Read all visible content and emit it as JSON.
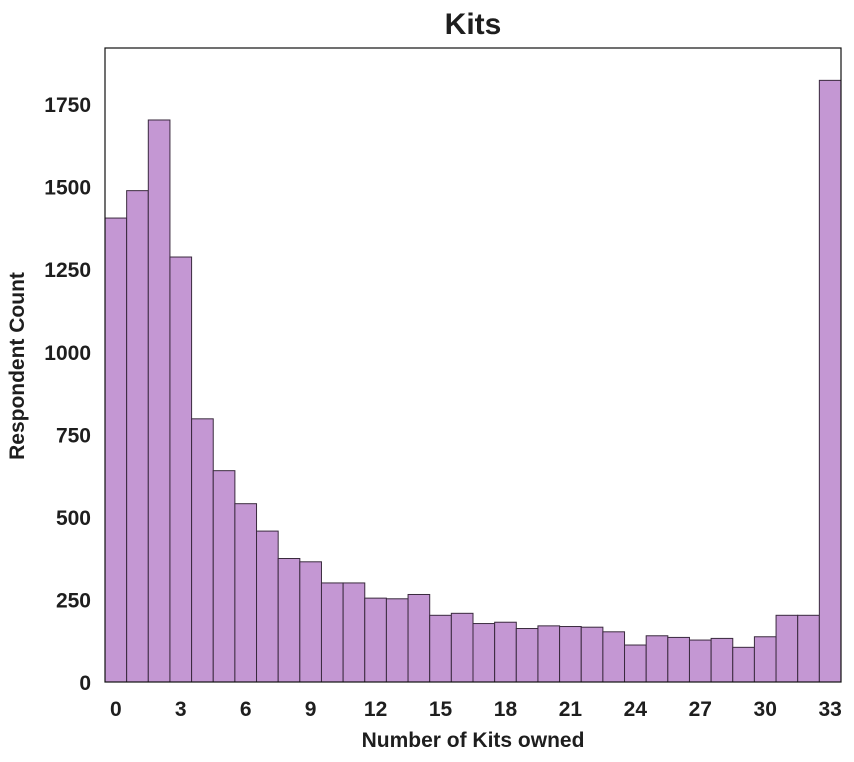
{
  "chart_data": {
    "type": "bar",
    "title": "Kits",
    "xlabel": "Number of Kits owned",
    "ylabel": "Respondent Count",
    "x": [
      0,
      1,
      2,
      3,
      4,
      5,
      6,
      7,
      8,
      9,
      10,
      11,
      12,
      13,
      14,
      15,
      16,
      17,
      18,
      19,
      20,
      21,
      22,
      23,
      24,
      25,
      26,
      27,
      28,
      29,
      30,
      31,
      32,
      33
    ],
    "values": [
      1405,
      1488,
      1702,
      1287,
      797,
      640,
      540,
      457,
      374,
      364,
      300,
      300,
      254,
      252,
      265,
      202,
      208,
      177,
      181,
      162,
      170,
      168,
      166,
      152,
      112,
      140,
      135,
      127,
      132,
      105,
      137,
      202,
      202,
      1822
    ],
    "xlim": [
      -0.5,
      33.5
    ],
    "ylim": [
      0,
      1920
    ],
    "xticks": [
      0,
      3,
      6,
      9,
      12,
      15,
      18,
      21,
      24,
      27,
      30,
      33
    ],
    "xtick_labels": [
      "0",
      "3",
      "6",
      "9",
      "12",
      "15",
      "18",
      "21",
      "24",
      "27",
      "30",
      "33"
    ],
    "yticks": [
      0,
      250,
      500,
      750,
      1000,
      1250,
      1500,
      1750
    ],
    "ytick_labels": [
      "0",
      "250",
      "500",
      "750",
      "1000",
      "1250",
      "1500",
      "1750"
    ],
    "grid": false,
    "bar_color": "#c497d3",
    "edge_color": "#3a2a3e"
  }
}
